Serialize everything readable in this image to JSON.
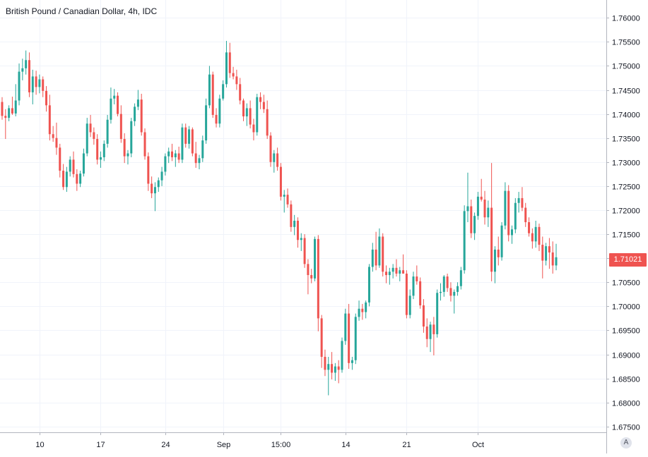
{
  "chart_data": {
    "type": "candlestick",
    "title": "British Pound / Canadian Dollar, 4h, IDC",
    "symbol": "British Pound / Canadian Dollar",
    "interval": "4h",
    "source": "IDC",
    "last_price": "1.71021",
    "ylim": [
      1.6738,
      1.7637
    ],
    "y_ticks": [
      "1.76000",
      "1.75500",
      "1.75000",
      "1.74500",
      "1.74000",
      "1.73500",
      "1.73000",
      "1.72500",
      "1.72000",
      "1.71500",
      "1.71000",
      "1.70500",
      "1.70000",
      "1.69500",
      "1.69000",
      "1.68500",
      "1.68000",
      "1.67500"
    ],
    "x_ticks": [
      "10",
      "17",
      "24",
      "Sep",
      "15:00",
      "14",
      "21",
      "Oct"
    ],
    "x_tick_index": [
      11,
      29,
      48,
      65,
      82,
      101,
      119,
      140
    ],
    "grid": true,
    "colors": {
      "up": "#26a69a",
      "down": "#ef5350",
      "grid": "#f0f3fa",
      "axis": "#b2b5be",
      "text": "#131722",
      "price_tag": "#ef5350"
    },
    "candles": [
      [
        1.7425,
        1.7435,
        1.7388,
        1.7396
      ],
      [
        1.7396,
        1.741,
        1.7348,
        1.7392
      ],
      [
        1.7392,
        1.7418,
        1.7385,
        1.7412
      ],
      [
        1.7412,
        1.7436,
        1.7398,
        1.7401
      ],
      [
        1.7401,
        1.7462,
        1.7395,
        1.7428
      ],
      [
        1.7428,
        1.7505,
        1.7418,
        1.7488
      ],
      [
        1.7488,
        1.7515,
        1.747,
        1.7495
      ],
      [
        1.7495,
        1.7532,
        1.7482,
        1.7512
      ],
      [
        1.7512,
        1.7528,
        1.7435,
        1.7445
      ],
      [
        1.7445,
        1.7492,
        1.742,
        1.7478
      ],
      [
        1.7478,
        1.749,
        1.744,
        1.7456
      ],
      [
        1.7456,
        1.7482,
        1.7443,
        1.7472
      ],
      [
        1.7472,
        1.7478,
        1.7435,
        1.7448
      ],
      [
        1.7448,
        1.7458,
        1.7405,
        1.7418
      ],
      [
        1.7418,
        1.744,
        1.7345,
        1.7358
      ],
      [
        1.7358,
        1.7375,
        1.7342,
        1.735
      ],
      [
        1.735,
        1.7382,
        1.7315,
        1.733
      ],
      [
        1.733,
        1.7338,
        1.7268,
        1.7282
      ],
      [
        1.7282,
        1.7296,
        1.7242,
        1.7248
      ],
      [
        1.7248,
        1.729,
        1.7238,
        1.728
      ],
      [
        1.728,
        1.7312,
        1.727,
        1.7305
      ],
      [
        1.7305,
        1.7322,
        1.7268,
        1.7275
      ],
      [
        1.7275,
        1.7285,
        1.724,
        1.7255
      ],
      [
        1.7255,
        1.7282,
        1.7248,
        1.7276
      ],
      [
        1.7276,
        1.7328,
        1.727,
        1.7318
      ],
      [
        1.7318,
        1.7392,
        1.7312,
        1.738
      ],
      [
        1.738,
        1.7398,
        1.7352,
        1.7362
      ],
      [
        1.7362,
        1.7372,
        1.7336,
        1.7348
      ],
      [
        1.7348,
        1.7358,
        1.7295,
        1.7305
      ],
      [
        1.7305,
        1.7322,
        1.7288,
        1.731
      ],
      [
        1.731,
        1.7345,
        1.7302,
        1.7338
      ],
      [
        1.7338,
        1.7398,
        1.733,
        1.7388
      ],
      [
        1.7388,
        1.7455,
        1.738,
        1.7432
      ],
      [
        1.7432,
        1.7452,
        1.742,
        1.7438
      ],
      [
        1.7438,
        1.7445,
        1.7395,
        1.74
      ],
      [
        1.74,
        1.7418,
        1.734,
        1.7348
      ],
      [
        1.7348,
        1.736,
        1.7298,
        1.7312
      ],
      [
        1.7312,
        1.7325,
        1.7295,
        1.7318
      ],
      [
        1.7318,
        1.7392,
        1.731,
        1.7385
      ],
      [
        1.7385,
        1.7422,
        1.7375,
        1.7415
      ],
      [
        1.7415,
        1.745,
        1.7408,
        1.743
      ],
      [
        1.743,
        1.7442,
        1.7355,
        1.7362
      ],
      [
        1.7362,
        1.737,
        1.7305,
        1.7312
      ],
      [
        1.7312,
        1.732,
        1.724,
        1.7255
      ],
      [
        1.7255,
        1.727,
        1.7225,
        1.7235
      ],
      [
        1.7235,
        1.7258,
        1.7198,
        1.7248
      ],
      [
        1.7248,
        1.7268,
        1.7238,
        1.7262
      ],
      [
        1.7262,
        1.729,
        1.725,
        1.728
      ],
      [
        1.728,
        1.7318,
        1.7272,
        1.7312
      ],
      [
        1.7312,
        1.733,
        1.7298,
        1.7322
      ],
      [
        1.7322,
        1.7338,
        1.7302,
        1.731
      ],
      [
        1.731,
        1.7325,
        1.729,
        1.7318
      ],
      [
        1.7318,
        1.7332,
        1.7298,
        1.7305
      ],
      [
        1.7305,
        1.738,
        1.7298,
        1.7372
      ],
      [
        1.7372,
        1.738,
        1.733,
        1.7338
      ],
      [
        1.7338,
        1.7375,
        1.7328,
        1.7368
      ],
      [
        1.7368,
        1.7372,
        1.7312,
        1.7318
      ],
      [
        1.7318,
        1.7342,
        1.7288,
        1.7298
      ],
      [
        1.7298,
        1.7315,
        1.7285,
        1.7308
      ],
      [
        1.7308,
        1.7355,
        1.73,
        1.7345
      ],
      [
        1.7345,
        1.7432,
        1.7338,
        1.7418
      ],
      [
        1.7418,
        1.75,
        1.7412,
        1.7482
      ],
      [
        1.7482,
        1.7488,
        1.7392,
        1.7398
      ],
      [
        1.7398,
        1.7412,
        1.7372,
        1.738
      ],
      [
        1.738,
        1.744,
        1.7372,
        1.7432
      ],
      [
        1.7432,
        1.747,
        1.7428,
        1.7462
      ],
      [
        1.7462,
        1.7552,
        1.7455,
        1.7528
      ],
      [
        1.7528,
        1.7548,
        1.7475,
        1.7485
      ],
      [
        1.7485,
        1.7498,
        1.7472,
        1.7478
      ],
      [
        1.7478,
        1.7492,
        1.745,
        1.7462
      ],
      [
        1.7462,
        1.7475,
        1.742,
        1.7428
      ],
      [
        1.7428,
        1.7432,
        1.7385,
        1.7395
      ],
      [
        1.7395,
        1.7422,
        1.7375,
        1.7412
      ],
      [
        1.7412,
        1.7428,
        1.737,
        1.7378
      ],
      [
        1.7378,
        1.739,
        1.7345,
        1.7362
      ],
      [
        1.7362,
        1.7442,
        1.7355,
        1.7435
      ],
      [
        1.7435,
        1.7445,
        1.741,
        1.7425
      ],
      [
        1.7425,
        1.744,
        1.7402,
        1.741
      ],
      [
        1.741,
        1.7428,
        1.7348,
        1.7355
      ],
      [
        1.7355,
        1.7362,
        1.729,
        1.73
      ],
      [
        1.73,
        1.7325,
        1.7278,
        1.7318
      ],
      [
        1.7318,
        1.733,
        1.7282,
        1.729
      ],
      [
        1.729,
        1.7298,
        1.722,
        1.7228
      ],
      [
        1.7228,
        1.7242,
        1.7195,
        1.7232
      ],
      [
        1.7232,
        1.7245,
        1.7205,
        1.7212
      ],
      [
        1.7212,
        1.722,
        1.7155,
        1.7165
      ],
      [
        1.7165,
        1.719,
        1.7148,
        1.7178
      ],
      [
        1.7178,
        1.7185,
        1.7122,
        1.7138
      ],
      [
        1.7138,
        1.7152,
        1.7115,
        1.7142
      ],
      [
        1.7142,
        1.715,
        1.708,
        1.7088
      ],
      [
        1.7088,
        1.7098,
        1.7025,
        1.7065
      ],
      [
        1.7065,
        1.7078,
        1.7048,
        1.7058
      ],
      [
        1.7058,
        1.7145,
        1.7052,
        1.714
      ],
      [
        1.714,
        1.7148,
        1.6948,
        1.6975
      ],
      [
        1.6975,
        1.6982,
        1.6872,
        1.6895
      ],
      [
        1.6895,
        1.691,
        1.6855,
        1.6868
      ],
      [
        1.6868,
        1.6895,
        1.6815,
        1.688
      ],
      [
        1.688,
        1.6905,
        1.6848,
        1.6862
      ],
      [
        1.6862,
        1.6882,
        1.6845,
        1.6875
      ],
      [
        1.6875,
        1.6888,
        1.684,
        1.6868
      ],
      [
        1.6868,
        1.6935,
        1.6862,
        1.6928
      ],
      [
        1.6928,
        1.6995,
        1.692,
        1.6985
      ],
      [
        1.6985,
        1.7005,
        1.687,
        1.6882
      ],
      [
        1.6882,
        1.6895,
        1.6868,
        1.6888
      ],
      [
        1.6888,
        1.6985,
        1.688,
        1.6978
      ],
      [
        1.6978,
        1.7012,
        1.697,
        1.6995
      ],
      [
        1.6995,
        1.7005,
        1.6972,
        1.6988
      ],
      [
        1.6988,
        1.7012,
        1.6975,
        1.7008
      ],
      [
        1.7008,
        1.7088,
        1.7,
        1.7082
      ],
      [
        1.7082,
        1.7132,
        1.7072,
        1.7118
      ],
      [
        1.7118,
        1.7155,
        1.7075,
        1.7085
      ],
      [
        1.7085,
        1.7162,
        1.708,
        1.7145
      ],
      [
        1.7145,
        1.7152,
        1.7062,
        1.7072
      ],
      [
        1.7072,
        1.7085,
        1.7048,
        1.7065
      ],
      [
        1.7065,
        1.708,
        1.7045,
        1.7072
      ],
      [
        1.7072,
        1.7088,
        1.7058,
        1.708
      ],
      [
        1.708,
        1.7098,
        1.7062,
        1.7068
      ],
      [
        1.7068,
        1.7082,
        1.7052,
        1.7075
      ],
      [
        1.7075,
        1.7108,
        1.7068,
        1.7068
      ],
      [
        1.7068,
        1.7075,
        1.6975,
        1.6982
      ],
      [
        1.6982,
        1.7035,
        1.6975,
        1.7022
      ],
      [
        1.7022,
        1.7072,
        1.7015,
        1.7062
      ],
      [
        1.7062,
        1.7085,
        1.7045,
        1.7052
      ],
      [
        1.7052,
        1.706,
        1.6995,
        1.7002
      ],
      [
        1.7002,
        1.7015,
        1.6945,
        1.6958
      ],
      [
        1.6958,
        1.6975,
        1.6915,
        1.6932
      ],
      [
        1.6932,
        1.6968,
        1.6905,
        1.6962
      ],
      [
        1.6962,
        1.6978,
        1.6898,
        1.6942
      ],
      [
        1.6942,
        1.7035,
        1.6935,
        1.7028
      ],
      [
        1.7028,
        1.7048,
        1.7012,
        1.703
      ],
      [
        1.703,
        1.7065,
        1.702,
        1.7062
      ],
      [
        1.7062,
        1.7068,
        1.703,
        1.7038
      ],
      [
        1.7038,
        1.705,
        1.701,
        1.7022
      ],
      [
        1.7022,
        1.7035,
        1.6985,
        1.703
      ],
      [
        1.703,
        1.705,
        1.7022,
        1.7042
      ],
      [
        1.7042,
        1.7082,
        1.7035,
        1.7075
      ],
      [
        1.7075,
        1.721,
        1.7068,
        1.7198
      ],
      [
        1.7198,
        1.7278,
        1.7175,
        1.7208
      ],
      [
        1.7208,
        1.7222,
        1.7142,
        1.7152
      ],
      [
        1.7152,
        1.7195,
        1.7138,
        1.7188
      ],
      [
        1.7188,
        1.7238,
        1.718,
        1.7228
      ],
      [
        1.7228,
        1.7265,
        1.7218,
        1.7222
      ],
      [
        1.7222,
        1.724,
        1.717,
        1.7185
      ],
      [
        1.7185,
        1.722,
        1.7165,
        1.7205
      ],
      [
        1.7205,
        1.7298,
        1.7052,
        1.7072
      ],
      [
        1.7072,
        1.7125,
        1.7048,
        1.7118
      ],
      [
        1.7118,
        1.7145,
        1.7085,
        1.7102
      ],
      [
        1.7102,
        1.7175,
        1.7095,
        1.7168
      ],
      [
        1.7168,
        1.7258,
        1.716,
        1.724
      ],
      [
        1.724,
        1.7252,
        1.7135,
        1.7148
      ],
      [
        1.7148,
        1.7168,
        1.713,
        1.716
      ],
      [
        1.716,
        1.7225,
        1.7152,
        1.7215
      ],
      [
        1.7215,
        1.7238,
        1.7195,
        1.7225
      ],
      [
        1.7225,
        1.7248,
        1.7198,
        1.7205
      ],
      [
        1.7205,
        1.7215,
        1.7165,
        1.7175
      ],
      [
        1.7175,
        1.7185,
        1.7145,
        1.7152
      ],
      [
        1.7152,
        1.7162,
        1.712,
        1.7135
      ],
      [
        1.7135,
        1.7178,
        1.7122,
        1.7165
      ],
      [
        1.7165,
        1.7172,
        1.7115,
        1.7128
      ],
      [
        1.7128,
        1.7145,
        1.7058,
        1.7095
      ],
      [
        1.7095,
        1.7132,
        1.7085,
        1.7125
      ],
      [
        1.7125,
        1.7142,
        1.7078,
        1.7112
      ],
      [
        1.7112,
        1.7135,
        1.7068,
        1.7085
      ],
      [
        1.7085,
        1.713,
        1.7075,
        1.7102
      ]
    ]
  }
}
